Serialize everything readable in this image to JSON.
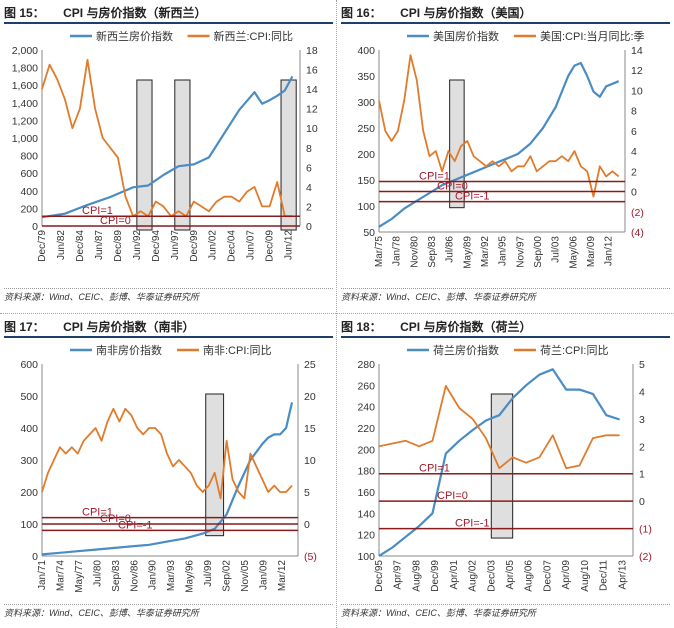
{
  "panels": [
    {
      "title_num": "图 15：",
      "title_text": "CPI 与房价指数（新西兰）",
      "source": "资料来源：Wind、CEIC、彭博、华泰证券研究所",
      "chart_data": {
        "type": "line",
        "series": [
          {
            "name": "新西兰房价指数",
            "axis": "left",
            "color": "#4a8cc4",
            "x": [
              0,
              3,
              6,
              9,
              12,
              14,
              16,
              18,
              20,
              22,
              24,
              26,
              28,
              29,
              30,
              31,
              32,
              33
            ],
            "values": [
              100,
              140,
              240,
              330,
              440,
              460,
              580,
              680,
              700,
              780,
              1050,
              1320,
              1520,
              1390,
              1430,
              1480,
              1540,
              1700
            ]
          },
          {
            "name": "新西兰:CPI:同比",
            "axis": "right",
            "color": "#e07b2c",
            "x": [
              0,
              1,
              2,
              3,
              4,
              5,
              6,
              7,
              8,
              9,
              10,
              11,
              12,
              13,
              14,
              15,
              16,
              17,
              18,
              19,
              20,
              21,
              22,
              23,
              24,
              25,
              26,
              27,
              28,
              29,
              30,
              31,
              32,
              33
            ],
            "values": [
              14,
              16.5,
              15,
              13,
              10,
              12,
              17,
              12,
              9,
              8,
              7,
              3,
              1,
              1.5,
              1,
              2.5,
              2,
              1,
              1.5,
              1,
              2.5,
              2,
              1.5,
              2.5,
              3,
              3,
              2.5,
              3.5,
              4,
              2,
              2,
              4.5,
              1,
              1
            ]
          }
        ],
        "categories": [
          "Dec/79",
          "Jun/82",
          "Dec/84",
          "Jun/87",
          "Dec/89",
          "Jun/92",
          "Dec/94",
          "Jun/97",
          "Dec/99",
          "Jun/02",
          "Dec/04",
          "Jun/07",
          "Dec/09",
          "Jun/12"
        ],
        "category_x": [
          0,
          2.5,
          5,
          7.5,
          10,
          12.5,
          15,
          17.5,
          20,
          22.5,
          25,
          27.5,
          30,
          32.5
        ],
        "x_range": [
          0,
          34
        ],
        "y_left": {
          "min": 0,
          "max": 2000,
          "ticks": [
            "0",
            "200",
            "400",
            "600",
            "800",
            "1,000",
            "1,200",
            "1,400",
            "1,600",
            "1,800",
            "2,000"
          ]
        },
        "y_right": {
          "min": 0,
          "max": 18,
          "ticks": [
            "0",
            "2",
            "4",
            "6",
            "8",
            "10",
            "12",
            "14",
            "16",
            "18"
          ]
        },
        "hlines": [
          {
            "label": "CPI=1",
            "y": 1
          },
          {
            "label": "CPI=0",
            "y": 0
          }
        ],
        "shaded": [
          [
            12.5,
            14.5
          ],
          [
            17.5,
            19.5
          ],
          [
            31.5,
            33.5
          ]
        ]
      }
    },
    {
      "title_num": "图 16：",
      "title_text": "CPI 与房价指数（美国）",
      "source": "资料来源：Wind、CEIC、彭博、华泰证券研究所",
      "chart_data": {
        "type": "line",
        "series": [
          {
            "name": "美国房价指数",
            "axis": "left",
            "color": "#4a8cc4",
            "x": [
              0,
              2,
              4,
              6,
              8,
              10,
              12,
              14,
              16,
              18,
              20,
              22,
              24,
              26,
              28,
              30,
              31,
              32,
              33,
              34,
              35,
              36,
              37,
              38
            ],
            "values": [
              60,
              75,
              95,
              110,
              125,
              140,
              150,
              160,
              170,
              180,
              190,
              200,
              220,
              250,
              290,
              350,
              370,
              375,
              350,
              320,
              310,
              330,
              335,
              340
            ]
          },
          {
            "name": "美国:CPI:当月同比:季",
            "axis": "right",
            "color": "#e07b2c",
            "x": [
              0,
              1,
              2,
              3,
              4,
              5,
              6,
              7,
              8,
              9,
              10,
              11,
              12,
              13,
              14,
              15,
              16,
              17,
              18,
              19,
              20,
              21,
              22,
              23,
              24,
              25,
              26,
              27,
              28,
              29,
              30,
              31,
              32,
              33,
              34,
              35,
              36,
              37,
              38
            ],
            "values": [
              9,
              6,
              5,
              6,
              9,
              13.5,
              11,
              6,
              3.5,
              4,
              2,
              4,
              3,
              4.5,
              5,
              3.5,
              3,
              2.5,
              3,
              2.5,
              3,
              2,
              2.5,
              2.5,
              3.5,
              2,
              2.5,
              3,
              3,
              3.5,
              3,
              4,
              2.5,
              2,
              -0.5,
              2.5,
              1.5,
              2,
              1.5
            ]
          }
        ],
        "categories": [
          "Mar/75",
          "Jan/78",
          "Nov/80",
          "Sep/83",
          "Jul/86",
          "May/89",
          "Mar/92",
          "Jan/95",
          "Nov/97",
          "Sep/00",
          "Jul/03",
          "May/06",
          "Mar/09",
          "Jan/12"
        ],
        "category_x": [
          0,
          2.8,
          5.6,
          8.4,
          11.2,
          14,
          16.8,
          19.6,
          22.4,
          25.2,
          28,
          30.8,
          33.6,
          36.4
        ],
        "x_range": [
          0,
          39
        ],
        "y_left": {
          "min": 50,
          "max": 400,
          "ticks": [
            "50",
            "100",
            "150",
            "200",
            "250",
            "300",
            "350",
            "400"
          ]
        },
        "y_right": {
          "min": -4,
          "max": 14,
          "ticks": [
            "(4)",
            "(2)",
            "0",
            "2",
            "4",
            "6",
            "8",
            "10",
            "12",
            "14"
          ]
        },
        "hlines": [
          {
            "label": "CPI=1",
            "y": 1
          },
          {
            "label": "CPI=0",
            "y": 0
          },
          {
            "label": "CPI=-1",
            "y": -1
          }
        ],
        "shaded": [
          [
            11.2,
            13.5
          ]
        ]
      }
    },
    {
      "title_num": "图 17：",
      "title_text": "CPI 与房价指数（南非）",
      "source": "资料来源：Wind、CEIC、彭博、华泰证券研究所",
      "chart_data": {
        "type": "line",
        "series": [
          {
            "name": "南非房价指数",
            "axis": "left",
            "color": "#4a8cc4",
            "x": [
              0,
              3,
              6,
              9,
              12,
              15,
              18,
              21,
              24,
              27,
              29,
              31,
              33,
              35,
              37,
              38,
              39,
              40,
              41,
              42
            ],
            "values": [
              5,
              10,
              15,
              20,
              25,
              30,
              35,
              45,
              55,
              70,
              85,
              130,
              220,
              300,
              350,
              370,
              380,
              380,
              400,
              480
            ]
          },
          {
            "name": "南非:CPI:同比",
            "axis": "right",
            "color": "#e07b2c",
            "x": [
              0,
              1,
              2,
              3,
              4,
              5,
              6,
              7,
              8,
              9,
              10,
              11,
              12,
              13,
              14,
              15,
              16,
              17,
              18,
              19,
              20,
              21,
              22,
              23,
              24,
              25,
              26,
              27,
              28,
              29,
              30,
              31,
              32,
              33,
              34,
              35,
              36,
              37,
              38,
              39,
              40,
              41,
              42
            ],
            "values": [
              5,
              8,
              10,
              12,
              11,
              12,
              11,
              13,
              14,
              15,
              13,
              16,
              18,
              16,
              18,
              17,
              15,
              14,
              15,
              15,
              14,
              11,
              9,
              10,
              9,
              8,
              6,
              5,
              6,
              8,
              4,
              13,
              7,
              5,
              4,
              11,
              9,
              7,
              5,
              6,
              5,
              5,
              6
            ]
          }
        ],
        "categories": [
          "Jan/71",
          "Mar/74",
          "May/77",
          "Jul/80",
          "Sep/83",
          "Nov/86",
          "Jan/90",
          "Mar/93",
          "May/96",
          "Jul/99",
          "Sep/02",
          "Nov/05",
          "Jan/09",
          "Mar/12"
        ],
        "category_x": [
          0,
          3.1,
          6.2,
          9.3,
          12.4,
          15.5,
          18.6,
          21.7,
          24.8,
          27.9,
          31,
          34.1,
          37.2,
          40.3
        ],
        "x_range": [
          0,
          43
        ],
        "y_left": {
          "min": 0,
          "max": 600,
          "ticks": [
            "0",
            "100",
            "200",
            "300",
            "400",
            "500",
            "600"
          ]
        },
        "y_right": {
          "min": -5,
          "max": 25,
          "ticks": [
            "(5)",
            "0",
            "5",
            "10",
            "15",
            "20",
            "25"
          ]
        },
        "hlines": [
          {
            "label": "CPI=1",
            "y": 1
          },
          {
            "label": "CPI=0",
            "y": 0
          },
          {
            "label": "CPI=-1",
            "y": -1
          }
        ],
        "shaded": [
          [
            27.5,
            30.5
          ]
        ]
      }
    },
    {
      "title_num": "图 18：",
      "title_text": "CPI 与房价指数（荷兰）",
      "source": "资料来源：Wind、CEIC、彭博、华泰证券研究所",
      "chart_data": {
        "type": "line",
        "series": [
          {
            "name": "荷兰房价指数",
            "axis": "left",
            "color": "#4a8cc4",
            "x": [
              0,
              1,
              2,
              3,
              4,
              5,
              6,
              7,
              8,
              9,
              10,
              11,
              12,
              13,
              14,
              15,
              16,
              17,
              18
            ],
            "values": [
              100,
              108,
              118,
              128,
              140,
              196,
              208,
              218,
              227,
              232,
              248,
              260,
              270,
              275,
              256,
              256,
              252,
              232,
              228
            ]
          },
          {
            "name": "荷兰:CPI:同比",
            "axis": "right",
            "color": "#e07b2c",
            "x": [
              0,
              1,
              2,
              3,
              4,
              5,
              6,
              7,
              8,
              9,
              10,
              11,
              12,
              13,
              14,
              15,
              16,
              17,
              18
            ],
            "values": [
              2,
              2.1,
              2.2,
              2,
              2.2,
              4.2,
              3.4,
              3.0,
              2.3,
              1.2,
              1.6,
              1.4,
              1.6,
              2.4,
              1.2,
              1.3,
              2.3,
              2.4,
              2.4
            ]
          }
        ],
        "categories": [
          "Dec/95",
          "Apr/97",
          "Aug/98",
          "Dec/99",
          "Apr/01",
          "Aug/02",
          "Dec/03",
          "Apr/05",
          "Aug/06",
          "Dec/07",
          "Apr/09",
          "Aug/10",
          "Dec/11",
          "Apr/13"
        ],
        "category_x": [
          0,
          1.4,
          2.8,
          4.2,
          5.6,
          7,
          8.4,
          9.8,
          11.2,
          12.6,
          14,
          15.4,
          16.8,
          18.2
        ],
        "x_range": [
          0,
          19
        ],
        "y_left": {
          "min": 100,
          "max": 280,
          "ticks": [
            "100",
            "120",
            "140",
            "160",
            "180",
            "200",
            "220",
            "240",
            "260",
            "280"
          ]
        },
        "y_right": {
          "min": -2,
          "max": 5,
          "ticks": [
            "(2)",
            "(1)",
            "0",
            "1",
            "2",
            "3",
            "4",
            "5"
          ]
        },
        "hlines": [
          {
            "label": "CPI=1",
            "y": 1
          },
          {
            "label": "CPI=0",
            "y": 0
          },
          {
            "label": "CPI=-1",
            "y": -1
          }
        ],
        "shaded": [
          [
            8.4,
            10
          ]
        ]
      }
    }
  ]
}
